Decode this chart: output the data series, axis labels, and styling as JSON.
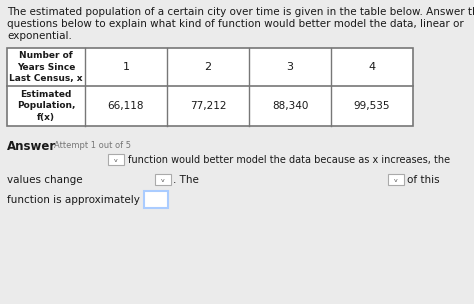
{
  "title_line1": "The estimated population of a certain city over time is given in the table below. Answer th",
  "title_line2": "questions below to explain what kind of function would better model the data, linear or",
  "title_line3": "exponential.",
  "title_fontsize": 7.5,
  "row1_cells": [
    "Number of\nYears Since\nLast Census, x",
    "1",
    "2",
    "3",
    "4"
  ],
  "row2_cells": [
    "Estimated\nPopulation,\nf(x)",
    "66,118",
    "77,212",
    "88,340",
    "99,535"
  ],
  "answer_label": "Answer",
  "attempt_label": "Attempt 1 out of 5",
  "line1_text": "function would better model the data because as x increases, the",
  "line2_left": "values change",
  "line2_mid": ". The",
  "line2_right": "of this",
  "line3_text": "function is approximately",
  "bg_color": "#ebebeb",
  "table_bg": "#ffffff",
  "text_color": "#1a1a1a",
  "border_color": "#777777",
  "dropdown_border": "#aaaaaa",
  "box_border_color": "#aaccff"
}
